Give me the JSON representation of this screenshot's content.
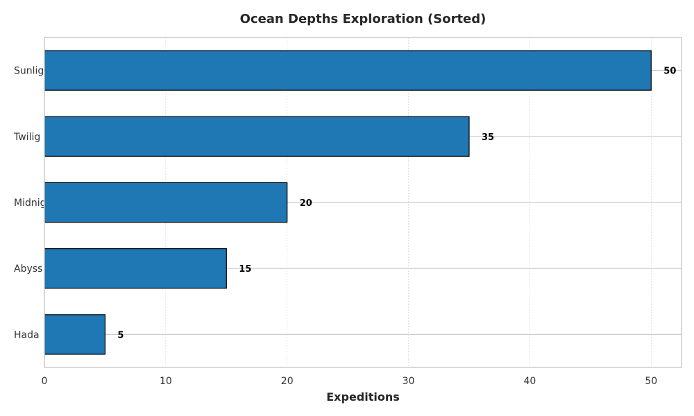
{
  "chart_data": {
    "type": "bar",
    "orientation": "horizontal",
    "title": "Ocean Depths Exploration (Sorted)",
    "xlabel": "Expeditions",
    "ylabel": "",
    "categories": [
      "Sunlig",
      "Twilig",
      "Midnig",
      "Abyss",
      "Hada"
    ],
    "values": [
      50,
      35,
      20,
      15,
      5
    ],
    "xlim": [
      0,
      52.5
    ],
    "xticks": [
      0,
      10,
      20,
      30,
      40,
      50
    ],
    "grid": true,
    "legend": "none",
    "colors": {
      "bar": "#1f77b4",
      "bar_edge": "#000000",
      "grid": "#cccccc",
      "frame": "#cccccc"
    }
  }
}
